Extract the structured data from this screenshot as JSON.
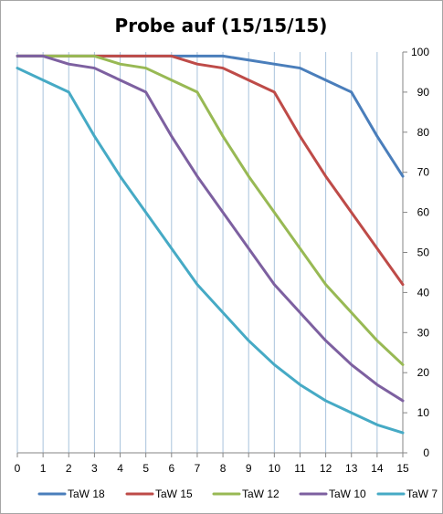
{
  "chart_data": {
    "type": "line",
    "title": "Probe auf (15/15/15)",
    "xlabel": "",
    "ylabel": "",
    "x": [
      0,
      1,
      2,
      3,
      4,
      5,
      6,
      7,
      8,
      9,
      10,
      11,
      12,
      13,
      14,
      15
    ],
    "xlim": [
      0,
      15
    ],
    "ylim": [
      0,
      100
    ],
    "y_ticks": [
      0,
      10,
      20,
      30,
      40,
      50,
      60,
      70,
      80,
      90,
      100
    ],
    "y_axis_side": "right",
    "grid": "vertical",
    "legend_position": "bottom",
    "series": [
      {
        "name": "TaW 18",
        "color": "#4a7ebb",
        "values": [
          99,
          99,
          99,
          99,
          99,
          99,
          99,
          99,
          99,
          98,
          97,
          96,
          93,
          90,
          79,
          69
        ]
      },
      {
        "name": "TaW 15",
        "color": "#be4b48",
        "values": [
          99,
          99,
          99,
          99,
          99,
          99,
          99,
          97,
          96,
          93,
          90,
          79,
          69,
          60,
          51,
          42
        ]
      },
      {
        "name": "TaW 12",
        "color": "#98b954",
        "values": [
          99,
          99,
          99,
          99,
          97,
          96,
          93,
          90,
          79,
          69,
          60,
          51,
          42,
          35,
          28,
          22
        ]
      },
      {
        "name": "TaW 10",
        "color": "#7d60a0",
        "values": [
          99,
          99,
          97,
          96,
          93,
          90,
          79,
          69,
          60,
          51,
          42,
          35,
          28,
          22,
          17,
          13
        ]
      },
      {
        "name": "TaW 7",
        "color": "#46aac5",
        "values": [
          96,
          93,
          90,
          79,
          69,
          60,
          51,
          42,
          35,
          28,
          22,
          17,
          13,
          10,
          7,
          5
        ]
      }
    ]
  }
}
